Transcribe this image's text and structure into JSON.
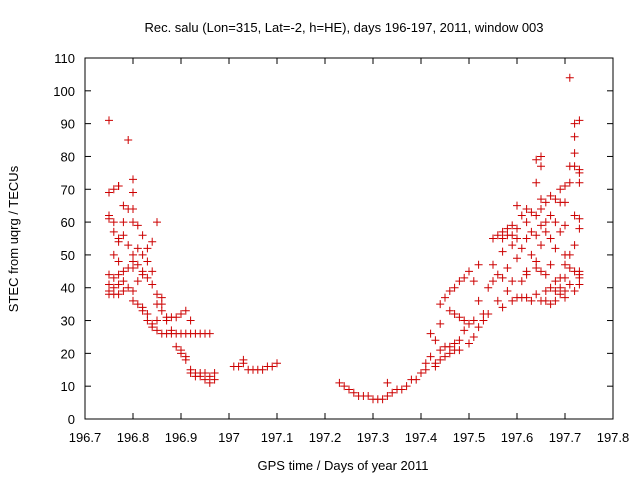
{
  "chart_data": {
    "type": "scatter",
    "title": "Rec. salu (Lon=315, Lat=-2, h=HE), days 196-197, 2011, window 003",
    "xlabel": "GPS time / Days of year 2011",
    "ylabel": "STEC from uqrg / TECUs",
    "xlim": [
      196.7,
      197.8
    ],
    "ylim": [
      0,
      110
    ],
    "xticks": [
      196.7,
      196.8,
      196.9,
      197,
      197.1,
      197.2,
      197.3,
      197.4,
      197.5,
      197.6,
      197.7,
      197.8
    ],
    "xtick_labels": [
      "196.7",
      "196.8",
      "196.9",
      "197",
      "197.1",
      "197.2",
      "197.3",
      "197.4",
      "197.5",
      "197.6",
      "197.7",
      "197.8"
    ],
    "yticks": [
      0,
      10,
      20,
      30,
      40,
      50,
      60,
      70,
      80,
      90,
      100,
      110
    ],
    "ytick_labels": [
      "0",
      "10",
      "20",
      "30",
      "40",
      "50",
      "60",
      "70",
      "80",
      "90",
      "100",
      "110"
    ],
    "grid": false,
    "marker": "+",
    "color": "#cc0000",
    "points": [
      [
        196.75,
        91
      ],
      [
        196.75,
        69
      ],
      [
        196.75,
        62
      ],
      [
        196.75,
        61
      ],
      [
        196.75,
        44
      ],
      [
        196.75,
        41
      ],
      [
        196.75,
        39
      ],
      [
        196.75,
        38
      ],
      [
        196.76,
        70
      ],
      [
        196.76,
        60
      ],
      [
        196.76,
        57
      ],
      [
        196.76,
        50
      ],
      [
        196.76,
        43
      ],
      [
        196.76,
        40
      ],
      [
        196.76,
        38
      ],
      [
        196.77,
        71
      ],
      [
        196.77,
        71
      ],
      [
        196.77,
        55
      ],
      [
        196.77,
        54
      ],
      [
        196.77,
        48
      ],
      [
        196.77,
        44
      ],
      [
        196.77,
        41
      ],
      [
        196.77,
        38
      ],
      [
        196.78,
        65
      ],
      [
        196.78,
        60
      ],
      [
        196.78,
        56
      ],
      [
        196.78,
        45
      ],
      [
        196.78,
        42
      ],
      [
        196.78,
        39
      ],
      [
        196.79,
        85
      ],
      [
        196.79,
        64
      ],
      [
        196.79,
        53
      ],
      [
        196.79,
        46
      ],
      [
        196.79,
        40
      ],
      [
        196.8,
        73
      ],
      [
        196.8,
        69
      ],
      [
        196.8,
        64
      ],
      [
        196.8,
        60
      ],
      [
        196.8,
        50
      ],
      [
        196.8,
        48
      ],
      [
        196.8,
        46
      ],
      [
        196.8,
        39
      ],
      [
        196.8,
        36
      ],
      [
        196.81,
        59
      ],
      [
        196.81,
        52
      ],
      [
        196.81,
        47
      ],
      [
        196.81,
        42
      ],
      [
        196.81,
        35
      ],
      [
        196.82,
        56
      ],
      [
        196.82,
        50
      ],
      [
        196.82,
        45
      ],
      [
        196.82,
        44
      ],
      [
        196.82,
        34
      ],
      [
        196.82,
        33
      ],
      [
        196.83,
        52
      ],
      [
        196.83,
        48
      ],
      [
        196.83,
        43
      ],
      [
        196.83,
        32
      ],
      [
        196.83,
        30
      ],
      [
        196.84,
        54
      ],
      [
        196.84,
        45
      ],
      [
        196.84,
        41
      ],
      [
        196.84,
        29
      ],
      [
        196.84,
        28
      ],
      [
        196.85,
        60
      ],
      [
        196.85,
        38
      ],
      [
        196.85,
        35
      ],
      [
        196.85,
        30
      ],
      [
        196.85,
        27
      ],
      [
        196.86,
        37
      ],
      [
        196.86,
        35
      ],
      [
        196.86,
        33
      ],
      [
        196.86,
        26
      ],
      [
        196.87,
        31
      ],
      [
        196.87,
        30
      ],
      [
        196.87,
        26
      ],
      [
        196.88,
        31
      ],
      [
        196.88,
        27
      ],
      [
        196.88,
        26
      ],
      [
        196.89,
        31
      ],
      [
        196.89,
        26
      ],
      [
        196.89,
        22
      ],
      [
        196.9,
        32
      ],
      [
        196.9,
        26
      ],
      [
        196.9,
        21
      ],
      [
        196.9,
        20
      ],
      [
        196.91,
        33
      ],
      [
        196.91,
        26
      ],
      [
        196.91,
        19
      ],
      [
        196.91,
        18
      ],
      [
        196.92,
        30
      ],
      [
        196.92,
        26
      ],
      [
        196.92,
        15
      ],
      [
        196.92,
        14
      ],
      [
        196.93,
        26
      ],
      [
        196.93,
        14
      ],
      [
        196.93,
        13
      ],
      [
        196.94,
        26
      ],
      [
        196.94,
        14
      ],
      [
        196.94,
        13
      ],
      [
        196.95,
        26
      ],
      [
        196.95,
        14
      ],
      [
        196.95,
        12
      ],
      [
        196.96,
        26
      ],
      [
        196.96,
        13
      ],
      [
        196.96,
        11
      ],
      [
        196.97,
        14
      ],
      [
        196.97,
        12
      ],
      [
        197.01,
        16
      ],
      [
        197.02,
        16
      ],
      [
        197.03,
        17
      ],
      [
        197.03,
        18
      ],
      [
        197.04,
        15
      ],
      [
        197.05,
        15
      ],
      [
        197.06,
        15
      ],
      [
        197.07,
        15
      ],
      [
        197.08,
        16
      ],
      [
        197.09,
        16
      ],
      [
        197.1,
        17
      ],
      [
        197.23,
        11
      ],
      [
        197.24,
        10
      ],
      [
        197.25,
        9
      ],
      [
        197.26,
        8
      ],
      [
        197.27,
        7
      ],
      [
        197.28,
        7
      ],
      [
        197.29,
        7
      ],
      [
        197.3,
        6
      ],
      [
        197.31,
        6
      ],
      [
        197.32,
        6
      ],
      [
        197.33,
        7
      ],
      [
        197.33,
        11
      ],
      [
        197.34,
        8
      ],
      [
        197.35,
        9
      ],
      [
        197.36,
        9
      ],
      [
        197.37,
        10
      ],
      [
        197.38,
        12
      ],
      [
        197.39,
        12
      ],
      [
        197.4,
        14
      ],
      [
        197.41,
        15
      ],
      [
        197.41,
        17
      ],
      [
        197.42,
        26
      ],
      [
        197.42,
        19
      ],
      [
        197.43,
        24
      ],
      [
        197.43,
        16
      ],
      [
        197.43,
        17
      ],
      [
        197.44,
        35
      ],
      [
        197.44,
        29
      ],
      [
        197.44,
        21
      ],
      [
        197.44,
        18
      ],
      [
        197.45,
        37
      ],
      [
        197.45,
        22
      ],
      [
        197.45,
        19
      ],
      [
        197.46,
        39
      ],
      [
        197.46,
        33
      ],
      [
        197.46,
        22
      ],
      [
        197.46,
        20
      ],
      [
        197.47,
        40
      ],
      [
        197.47,
        32
      ],
      [
        197.47,
        23
      ],
      [
        197.47,
        21
      ],
      [
        197.48,
        42
      ],
      [
        197.48,
        31
      ],
      [
        197.48,
        24
      ],
      [
        197.48,
        21
      ],
      [
        197.49,
        43
      ],
      [
        197.49,
        30
      ],
      [
        197.49,
        27
      ],
      [
        197.5,
        45
      ],
      [
        197.5,
        29
      ],
      [
        197.5,
        23
      ],
      [
        197.51,
        42
      ],
      [
        197.51,
        30
      ],
      [
        197.51,
        25
      ],
      [
        197.52,
        47
      ],
      [
        197.52,
        36
      ],
      [
        197.52,
        28
      ],
      [
        197.53,
        30
      ],
      [
        197.53,
        32
      ],
      [
        197.54,
        40
      ],
      [
        197.54,
        32
      ],
      [
        197.55,
        55
      ],
      [
        197.55,
        47
      ],
      [
        197.55,
        42
      ],
      [
        197.56,
        56
      ],
      [
        197.56,
        44
      ],
      [
        197.56,
        36
      ],
      [
        197.57,
        57
      ],
      [
        197.57,
        55
      ],
      [
        197.57,
        51
      ],
      [
        197.57,
        43
      ],
      [
        197.57,
        34
      ],
      [
        197.58,
        58
      ],
      [
        197.58,
        56
      ],
      [
        197.58,
        46
      ],
      [
        197.58,
        39
      ],
      [
        197.59,
        59
      ],
      [
        197.59,
        56
      ],
      [
        197.59,
        53
      ],
      [
        197.59,
        42
      ],
      [
        197.59,
        36
      ],
      [
        197.6,
        65
      ],
      [
        197.6,
        58
      ],
      [
        197.6,
        55
      ],
      [
        197.6,
        49
      ],
      [
        197.6,
        37
      ],
      [
        197.61,
        62
      ],
      [
        197.61,
        52
      ],
      [
        197.61,
        42
      ],
      [
        197.61,
        37
      ],
      [
        197.62,
        64
      ],
      [
        197.62,
        60
      ],
      [
        197.62,
        55
      ],
      [
        197.62,
        45
      ],
      [
        197.62,
        44
      ],
      [
        197.62,
        37
      ],
      [
        197.63,
        63
      ],
      [
        197.63,
        57
      ],
      [
        197.63,
        50
      ],
      [
        197.63,
        36
      ],
      [
        197.64,
        79
      ],
      [
        197.64,
        72
      ],
      [
        197.64,
        62
      ],
      [
        197.64,
        56
      ],
      [
        197.64,
        48
      ],
      [
        197.64,
        46
      ],
      [
        197.64,
        38
      ],
      [
        197.65,
        80
      ],
      [
        197.65,
        77
      ],
      [
        197.65,
        67
      ],
      [
        197.65,
        64
      ],
      [
        197.65,
        59
      ],
      [
        197.65,
        53
      ],
      [
        197.65,
        45
      ],
      [
        197.65,
        36
      ],
      [
        197.66,
        66
      ],
      [
        197.66,
        60
      ],
      [
        197.66,
        57
      ],
      [
        197.66,
        44
      ],
      [
        197.66,
        39
      ],
      [
        197.66,
        36
      ],
      [
        197.67,
        68
      ],
      [
        197.67,
        62
      ],
      [
        197.67,
        55
      ],
      [
        197.67,
        47
      ],
      [
        197.67,
        40
      ],
      [
        197.67,
        35
      ],
      [
        197.68,
        67
      ],
      [
        197.68,
        60
      ],
      [
        197.68,
        52
      ],
      [
        197.68,
        42
      ],
      [
        197.68,
        39
      ],
      [
        197.68,
        36
      ],
      [
        197.69,
        70
      ],
      [
        197.69,
        66
      ],
      [
        197.69,
        57
      ],
      [
        197.69,
        43
      ],
      [
        197.69,
        40
      ],
      [
        197.69,
        38
      ],
      [
        197.7,
        71
      ],
      [
        197.7,
        66
      ],
      [
        197.7,
        59
      ],
      [
        197.7,
        50
      ],
      [
        197.7,
        47
      ],
      [
        197.7,
        43
      ],
      [
        197.7,
        39
      ],
      [
        197.7,
        37
      ],
      [
        197.71,
        104
      ],
      [
        197.71,
        77
      ],
      [
        197.71,
        72
      ],
      [
        197.71,
        50
      ],
      [
        197.71,
        46
      ],
      [
        197.71,
        41
      ],
      [
        197.72,
        90
      ],
      [
        197.72,
        86
      ],
      [
        197.72,
        81
      ],
      [
        197.72,
        77
      ],
      [
        197.72,
        62
      ],
      [
        197.72,
        53
      ],
      [
        197.72,
        45
      ],
      [
        197.72,
        39
      ],
      [
        197.73,
        91
      ],
      [
        197.73,
        76
      ],
      [
        197.73,
        75
      ],
      [
        197.73,
        72
      ],
      [
        197.73,
        61
      ],
      [
        197.73,
        58
      ],
      [
        197.73,
        45
      ],
      [
        197.73,
        44
      ],
      [
        197.73,
        43
      ],
      [
        197.73,
        41
      ]
    ]
  }
}
